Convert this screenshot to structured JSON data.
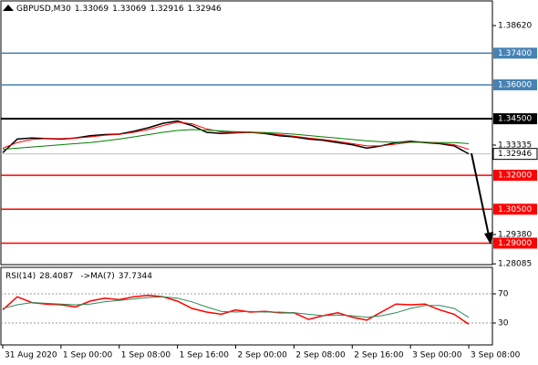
{
  "chart_data": [
    {
      "type": "line",
      "title": "GBPUSD,M30",
      "ohlc": [
        1.33069,
        1.33069,
        1.32916,
        1.32946
      ],
      "x": [
        0,
        4,
        8,
        12,
        16,
        20,
        24,
        28,
        32,
        36,
        40,
        44,
        48,
        52,
        56,
        60,
        64,
        68,
        72,
        76,
        80,
        84,
        88,
        92,
        96,
        100,
        104,
        108,
        112,
        116,
        120,
        124,
        128
      ],
      "xlim": [
        -0.5,
        134.5
      ],
      "xticks": [
        {
          "value": 0,
          "label": "31 Aug 2020"
        },
        {
          "value": 16,
          "label": "1 Sep 00:00"
        },
        {
          "value": 32,
          "label": "1 Sep 08:00"
        },
        {
          "value": 48,
          "label": "1 Sep 16:00"
        },
        {
          "value": 64,
          "label": "2 Sep 00:00"
        },
        {
          "value": 80,
          "label": "2 Sep 08:00"
        },
        {
          "value": 96,
          "label": "2 Sep 16:00"
        },
        {
          "value": 112,
          "label": "3 Sep 00:00"
        },
        {
          "value": 128,
          "label": "3 Sep 08:00"
        }
      ],
      "ylim": [
        1.2805,
        1.3971
      ],
      "yticks": [
        {
          "value": 1.3862,
          "label": "1.38620"
        },
        1.33335,
        {
          "value": 1.2938,
          "label": "1.29380"
        },
        1.28085
      ],
      "series": [
        {
          "color": "#000000",
          "values": [
            1.33,
            1.336,
            1.3365,
            1.3362,
            1.336,
            1.3365,
            1.3375,
            1.338,
            1.3382,
            1.3395,
            1.341,
            1.343,
            1.344,
            1.342,
            1.339,
            1.3385,
            1.3388,
            1.339,
            1.3385,
            1.3375,
            1.337,
            1.336,
            1.3355,
            1.3345,
            1.3335,
            1.332,
            1.333,
            1.3345,
            1.335,
            1.3345,
            1.334,
            1.333,
            1.32946
          ]
        },
        {
          "color": "#ff0000",
          "values": [
            1.332,
            1.3345,
            1.3358,
            1.3362,
            1.3362,
            1.3364,
            1.337,
            1.3377,
            1.3381,
            1.339,
            1.3402,
            1.342,
            1.3435,
            1.3428,
            1.3405,
            1.3392,
            1.3389,
            1.3389,
            1.3387,
            1.338,
            1.3373,
            1.3365,
            1.3358,
            1.335,
            1.334,
            1.333,
            1.333,
            1.3338,
            1.3346,
            1.3346,
            1.3342,
            1.3335,
            1.3315
          ]
        },
        {
          "color": "#008000",
          "values": [
            1.3315,
            1.332,
            1.3325,
            1.333,
            1.3335,
            1.334,
            1.3345,
            1.3352,
            1.336,
            1.337,
            1.338,
            1.339,
            1.3398,
            1.3402,
            1.34,
            1.3396,
            1.3393,
            1.3391,
            1.3389,
            1.3386,
            1.3382,
            1.3376,
            1.337,
            1.3364,
            1.3358,
            1.3352,
            1.3348,
            1.3346,
            1.3346,
            1.3346,
            1.3345,
            1.3345,
            1.334
          ]
        }
      ],
      "levels": [
        {
          "value": 1.374,
          "label": "1.37400",
          "color": "#4682b4"
        },
        {
          "value": 1.36,
          "label": "1.36000",
          "color": "#4682b4"
        },
        {
          "value": 1.345,
          "label": "1.34500",
          "color": "#000000"
        },
        {
          "value": 1.32,
          "label": "1.32000",
          "color": "#ff0000"
        },
        {
          "value": 1.305,
          "label": "1.30500",
          "color": "#ff0000"
        },
        {
          "value": 1.29,
          "label": "1.29000",
          "color": "#ff0000"
        }
      ],
      "current": 1.32946
    },
    {
      "type": "line",
      "title": "RSI(14)",
      "rsi": 28.4087,
      "ma_label": "->MA(7)",
      "ma": 37.7344,
      "ylim": [
        0,
        100
      ],
      "yticks": [
        70,
        30
      ],
      "series": [
        {
          "color": "#ff0000",
          "values": [
            48,
            66,
            58,
            56,
            55,
            52,
            60,
            64,
            62,
            66,
            68,
            66,
            60,
            50,
            45,
            42,
            48,
            45,
            46,
            44,
            44,
            35,
            40,
            44,
            38,
            34,
            45,
            56,
            55,
            56,
            48,
            42,
            28.4087
          ]
        },
        {
          "color": "#2e8b57",
          "values": [
            50,
            55,
            58,
            57,
            56,
            55,
            56,
            59,
            61,
            63,
            65,
            66,
            64,
            59,
            52,
            46,
            45,
            46,
            45,
            45,
            44,
            42,
            40,
            41,
            40,
            38,
            40,
            44,
            50,
            54,
            54,
            50,
            37.7344
          ]
        }
      ]
    }
  ]
}
